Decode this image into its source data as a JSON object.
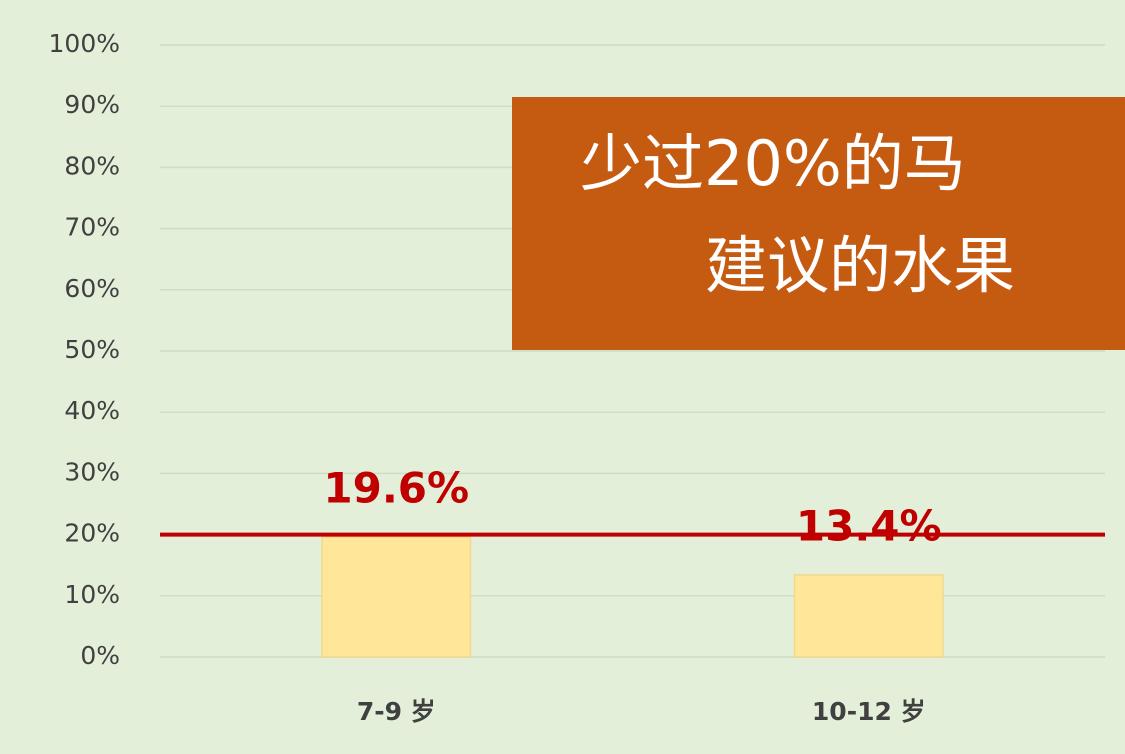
{
  "chart_data": {
    "type": "bar",
    "categories": [
      "7-9 岁",
      "10-12 岁"
    ],
    "values": [
      19.6,
      13.4
    ],
    "value_labels": [
      "19.6%",
      "13.4%"
    ],
    "color": "#ffe699",
    "label_color": "#c00000",
    "ylim": [
      0,
      100
    ],
    "yticks": [
      {
        "value": 0,
        "label": "0%"
      },
      {
        "value": 10,
        "label": "10%"
      },
      {
        "value": 20,
        "label": "20%"
      },
      {
        "value": 30,
        "label": "30%"
      },
      {
        "value": 40,
        "label": "40%"
      },
      {
        "value": 50,
        "label": "50%"
      },
      {
        "value": 60,
        "label": "60%"
      },
      {
        "value": 70,
        "label": "70%"
      },
      {
        "value": 80,
        "label": "80%"
      },
      {
        "value": 90,
        "label": "90%"
      },
      {
        "value": 100,
        "label": "100%"
      }
    ],
    "grid": true,
    "reference_line": {
      "value": 20,
      "color": "#c00000"
    },
    "annotation": {
      "lines": [
        "少过20%的马",
        "建议的水果"
      ],
      "color": "#c55a11"
    }
  }
}
